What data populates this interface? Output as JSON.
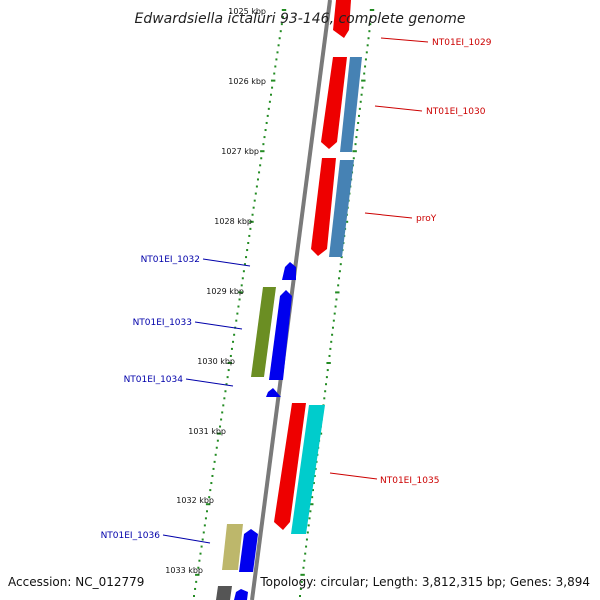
{
  "title": "Edwardsiella ictaluri 93-146, complete genome",
  "footer": {
    "accession": "Accession: NC_012779",
    "stats": "Topology: circular; Length: 3,812,315 bp; Genes: 3,894"
  },
  "kbp_labels": [
    "1025 kbp",
    "1026 kbp",
    "1027 kbp",
    "1028 kbp",
    "1029 kbp",
    "1030 kbp",
    "1031 kbp",
    "1032 kbp",
    "1033 kbp"
  ],
  "gene_labels": [
    {
      "name": "NT01EI_1029",
      "color": "#cc0000"
    },
    {
      "name": "NT01EI_1030",
      "color": "#cc0000"
    },
    {
      "name": "proY",
      "color": "#cc0000"
    },
    {
      "name": "NT01EI_1032",
      "color": "#0000aa"
    },
    {
      "name": "NT01EI_1033",
      "color": "#0000aa"
    },
    {
      "name": "NT01EI_1034",
      "color": "#0000aa"
    },
    {
      "name": "NT01EI_1035",
      "color": "#cc0000"
    },
    {
      "name": "NT01EI_1036",
      "color": "#0000aa"
    }
  ],
  "colors": {
    "forward_cds": "#ee0000",
    "forward_feature": "#4682b4",
    "forward_feature_cyan": "#00cccc",
    "reverse_cds": "#0000ee",
    "reverse_feature_green": "#6b8e23",
    "reverse_feature_khaki": "#bdb76b",
    "backbone": "#888888",
    "ticks": "#228b22"
  }
}
